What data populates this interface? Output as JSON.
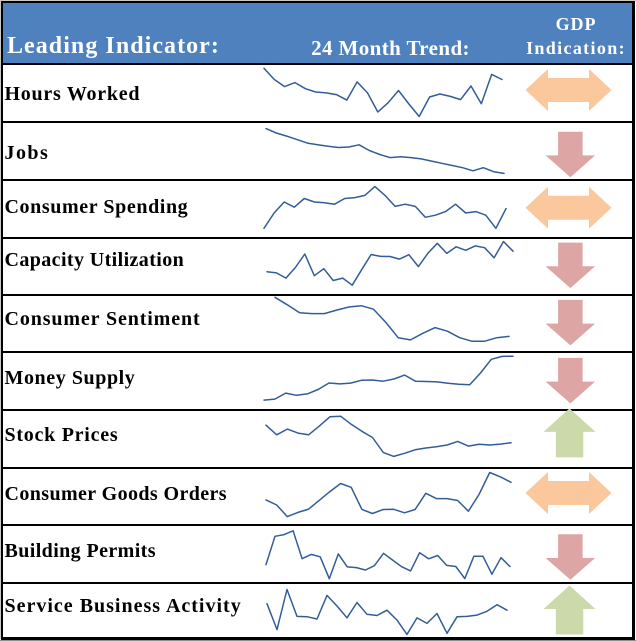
{
  "header": {
    "col1": "Leading Indicator:",
    "col2": "24 Month Trend:",
    "col3_line1": "GDP",
    "col3_line2": "Indication:",
    "background": "#4E81BD",
    "text_color": "#FFFFFF"
  },
  "arrow_colors": {
    "sideways": "#FAC89C",
    "down": "#DDA5A3",
    "up": "#CCDAAB"
  },
  "sparkline_color": "#335D98",
  "rows": [
    {
      "label": "Hours Worked",
      "gdp": "sideways"
    },
    {
      "label": "Jobs",
      "gdp": "down"
    },
    {
      "label": "Consumer Spending",
      "gdp": "sideways"
    },
    {
      "label": "Capacity Utilization",
      "gdp": "down"
    },
    {
      "label": "Consumer Sentiment",
      "gdp": "down"
    },
    {
      "label": "Money Supply",
      "gdp": "down"
    },
    {
      "label": "Stock Prices",
      "gdp": "up"
    },
    {
      "label": "Consumer Goods Orders",
      "gdp": "sideways"
    },
    {
      "label": "Building Permits",
      "gdp": "down"
    },
    {
      "label": "Service Business Activity",
      "gdp": "up"
    }
  ],
  "chart_data": [
    {
      "type": "line",
      "name": "Hours Worked",
      "ylim": [
        0,
        58
      ],
      "values": [
        52.7,
        41.5,
        34.4,
        38.4,
        32.3,
        29,
        28.1,
        26.4,
        20.9,
        39.1,
        28.1,
        9,
        18.3,
        30.5,
        17,
        4.5,
        24,
        27,
        24.6,
        21.4,
        35,
        17.3,
        46.6,
        41.5
      ]
    },
    {
      "type": "line",
      "name": "Jobs",
      "ylim": [
        0,
        58
      ],
      "values": [
        51.4,
        47,
        43.9,
        40.4,
        36.9,
        35.2,
        33.8,
        32.5,
        33,
        35.2,
        29.4,
        25.5,
        22.4,
        23.3,
        22.4,
        21.1,
        18.9,
        16.7,
        14.5,
        12.3,
        9.2,
        12.3,
        8.3,
        6.6
      ]
    },
    {
      "type": "line",
      "name": "Consumer Spending",
      "ylim": [
        0,
        58
      ],
      "values": [
        9.7,
        25,
        36,
        30.8,
        39.5,
        36,
        35.2,
        33.8,
        39.5,
        40.4,
        42.6,
        51.4,
        42.6,
        31.6,
        33.8,
        31.6,
        20.7,
        22.8,
        26.4,
        33.8,
        25,
        26.4,
        22.8,
        9.7,
        29.4
      ]
    },
    {
      "type": "line",
      "name": "Capacity Utilization",
      "ylim": [
        0,
        58
      ],
      "values": [
        24.3,
        23.1,
        17.9,
        28.5,
        42,
        20.3,
        27.3,
        15.5,
        17.9,
        10.8,
        26.2,
        41.5,
        39.6,
        39.5,
        36.9,
        41.3,
        29.4,
        42.6,
        52.7,
        42.6,
        49.2,
        45.7,
        50.1,
        48.3,
        38.2,
        54.5,
        44.8
      ]
    },
    {
      "type": "line",
      "name": "Consumer Sentiment",
      "ylim": [
        0,
        58
      ],
      "values": [
        56.7,
        49.2,
        41.3,
        40.4,
        40.4,
        43.9,
        47,
        48.3,
        44.8,
        31.6,
        16.3,
        14.1,
        20.7,
        26.4,
        22.8,
        16.3,
        12.7,
        12.7,
        16.3,
        17.6
      ]
    },
    {
      "type": "line",
      "name": "Money Supply",
      "ylim": [
        0,
        58
      ],
      "values": [
        11.9,
        12.9,
        18.9,
        16.7,
        18.1,
        22.5,
        29,
        28.1,
        28.9,
        31.7,
        32,
        30.8,
        33,
        36.9,
        30.7,
        30.5,
        30.1,
        28.8,
        27.7,
        27.2,
        39,
        52.7,
        55.6,
        55.8
      ]
    },
    {
      "type": "line",
      "name": "Stock Prices",
      "ylim": [
        0,
        58
      ],
      "values": [
        44.8,
        35.2,
        40.9,
        36.9,
        35.2,
        43.9,
        53.2,
        53.8,
        45.7,
        38.7,
        32.5,
        17.6,
        13.6,
        16.7,
        20.2,
        22,
        23.3,
        25,
        28.6,
        23.9,
        25.7,
        25,
        25.9,
        27.2
      ]
    },
    {
      "type": "line",
      "name": "Consumer Goods Orders",
      "ylim": [
        0,
        58
      ],
      "values": [
        28.1,
        23,
        11.4,
        15.6,
        18.9,
        27.7,
        36.4,
        44.5,
        40.7,
        18.6,
        14.5,
        18.5,
        18.7,
        15.2,
        18.5,
        34.7,
        29.4,
        29.4,
        27.5,
        16.8,
        33.5,
        55.5,
        51.2,
        45.7
      ]
    },
    {
      "type": "line",
      "name": "Building Permits",
      "ylim": [
        0,
        58
      ],
      "values": [
        21.4,
        49.7,
        51.4,
        55.2,
        27.3,
        31.6,
        29.2,
        7.3,
        32.1,
        19.1,
        18.4,
        16,
        20.3,
        32.7,
        26,
        19.3,
        15.1,
        33.3,
        27.2,
        30.5,
        20.6,
        19.5,
        7.4,
        29.8,
        29.8,
        11.8,
        28.3,
        19.5
      ]
    },
    {
      "type": "line",
      "name": "Service Business Activity",
      "ylim": [
        0,
        58
      ],
      "values": [
        40.3,
        14.4,
        54.5,
        27.6,
        27.3,
        25,
        48.6,
        38,
        26.2,
        41.5,
        29.7,
        28.5,
        33.8,
        23.9,
        9.6,
        26.1,
        20.6,
        30.5,
        10.7,
        27.2,
        27.6,
        28.9,
        32.7,
        39.3,
        33.8
      ]
    }
  ]
}
